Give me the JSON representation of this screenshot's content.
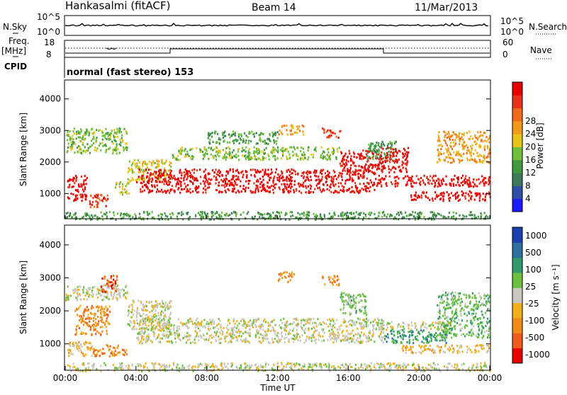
{
  "header": {
    "station": "Hankasalmi (fitACF)",
    "beam": "Beam 14",
    "date": "11/Mar/2013"
  },
  "status_panel": {
    "nsky_label": "N.Sky",
    "nsearch_label": "N.Search",
    "freq_label_1": "Freq.",
    "freq_label_2": "[MHz]",
    "nave_label": "Nave",
    "cpid_label": "CPID",
    "cpid_value": "normal (fast stereo) 153",
    "noise_ticks": [
      "10^5",
      "10^0"
    ],
    "freq_ticks": [
      "18",
      "8"
    ],
    "nave_ticks": [
      "60",
      "0"
    ]
  },
  "chart_data": [
    {
      "type": "heatmap",
      "name": "power",
      "ylabel": "Slant Range [km]",
      "xlabel": "",
      "ylim": [
        200,
        4600
      ],
      "yticks": [
        "1000",
        "2000",
        "3000",
        "4000"
      ],
      "colorbar": {
        "label": "Power [dB]",
        "ticks": [
          "4",
          "8",
          "12",
          "16",
          "20",
          "24",
          "28"
        ],
        "colors": [
          "#1a1aff",
          "#2d4fa8",
          "#3d7a5a",
          "#3f9a3f",
          "#6fbf3a",
          "#e8c41a",
          "#f39a1a",
          "#f06a1a",
          "#e8321a",
          "#e60000"
        ]
      },
      "scatter_regions": [
        {
          "t0": 0.1,
          "t1": 1.2,
          "r0": 800,
          "r1": 1600,
          "level": 9
        },
        {
          "t0": 1.2,
          "t1": 2.4,
          "r0": 600,
          "r1": 1000,
          "level": 8
        },
        {
          "t0": 2.8,
          "t1": 3.6,
          "r0": 1000,
          "r1": 1400,
          "level": 5
        },
        {
          "t0": 0.0,
          "t1": 3.5,
          "r0": 2300,
          "r1": 3100,
          "level": 4
        },
        {
          "t0": 3.5,
          "t1": 6.0,
          "r0": 1400,
          "r1": 2100,
          "level": 5
        },
        {
          "t0": 4.0,
          "t1": 17.5,
          "r0": 1050,
          "r1": 1800,
          "level": 9
        },
        {
          "t0": 6.0,
          "t1": 15.5,
          "r0": 2100,
          "r1": 2500,
          "level": 4
        },
        {
          "t0": 8.0,
          "t1": 12.0,
          "r0": 2600,
          "r1": 3000,
          "level": 3
        },
        {
          "t0": 12.0,
          "t1": 13.5,
          "r0": 2900,
          "r1": 3200,
          "level": 6
        },
        {
          "t0": 14.5,
          "t1": 15.6,
          "r0": 2800,
          "r1": 3100,
          "level": 8
        },
        {
          "t0": 15.5,
          "t1": 18.0,
          "r0": 1700,
          "r1": 2400,
          "level": 9
        },
        {
          "t0": 17.0,
          "t1": 18.7,
          "r0": 2100,
          "r1": 2700,
          "level": 3
        },
        {
          "t0": 17.8,
          "t1": 19.4,
          "r0": 1700,
          "r1": 2500,
          "level": 9
        },
        {
          "t0": 17.5,
          "t1": 24.0,
          "r0": 1250,
          "r1": 1600,
          "level": 9
        },
        {
          "t0": 19.5,
          "t1": 24.0,
          "r0": 800,
          "r1": 1100,
          "level": 9
        },
        {
          "t0": 21.0,
          "t1": 24.0,
          "r0": 2000,
          "r1": 3000,
          "level": 6
        },
        {
          "t0": 0.0,
          "t1": 24.0,
          "r0": 200,
          "r1": 450,
          "level": 3
        }
      ]
    },
    {
      "type": "heatmap",
      "name": "velocity",
      "ylabel": "Slant Range [km]",
      "xlabel": "Time UT",
      "ylim": [
        200,
        4600
      ],
      "yticks": [
        "1000",
        "2000",
        "3000",
        "4000"
      ],
      "xticks": [
        "00:00",
        "04:00",
        "08:00",
        "12:00",
        "16:00",
        "20:00",
        "00:00"
      ],
      "colorbar": {
        "label": "Velocity [m s⁻¹]",
        "ticks": [
          "1000",
          "500",
          "100",
          "25",
          "-25",
          "-100",
          "-500",
          "-1000"
        ],
        "colors": [
          "#1a3fb0",
          "#2c6fa0",
          "#2f9a6a",
          "#6cc040",
          "#c8c8c0",
          "#f2b01a",
          "#f28a1a",
          "#f05a1a",
          "#e60000"
        ]
      },
      "scatter_regions": [
        {
          "t0": 0.0,
          "t1": 3.5,
          "r0": 2350,
          "r1": 2800,
          "level": 4
        },
        {
          "t0": 3.5,
          "t1": 6.0,
          "r0": 1450,
          "r1": 2350,
          "level": 4
        },
        {
          "t0": 4.0,
          "t1": 18.0,
          "r0": 1050,
          "r1": 1800,
          "level": 4
        },
        {
          "t0": 17.5,
          "t1": 22.0,
          "r0": 1450,
          "r1": 1700,
          "level": 4
        },
        {
          "t0": 0.1,
          "t1": 1.5,
          "r0": 650,
          "r1": 1100,
          "level": 5
        },
        {
          "t0": 1.5,
          "t1": 3.5,
          "r0": 650,
          "r1": 1000,
          "level": 6
        },
        {
          "t0": 0.5,
          "t1": 2.5,
          "r0": 1300,
          "r1": 2200,
          "level": 6
        },
        {
          "t0": 2.0,
          "t1": 3.0,
          "r0": 2600,
          "r1": 3100,
          "level": 7
        },
        {
          "t0": 12.0,
          "t1": 13.0,
          "r0": 2900,
          "r1": 3200,
          "level": 6
        },
        {
          "t0": 15.5,
          "t1": 17.0,
          "r0": 1900,
          "r1": 2600,
          "level": 3
        },
        {
          "t0": 18.0,
          "t1": 21.5,
          "r0": 1050,
          "r1": 1450,
          "level": 2
        },
        {
          "t0": 19.0,
          "t1": 24.0,
          "r0": 750,
          "r1": 1000,
          "level": 5
        },
        {
          "t0": 21.0,
          "t1": 24.0,
          "r0": 1200,
          "r1": 2600,
          "level": 3
        },
        {
          "t0": 14.5,
          "t1": 15.5,
          "r0": 2800,
          "r1": 3100,
          "level": 6
        },
        {
          "t0": 0.0,
          "t1": 24.0,
          "r0": 200,
          "r1": 450,
          "level": 4
        }
      ]
    }
  ]
}
